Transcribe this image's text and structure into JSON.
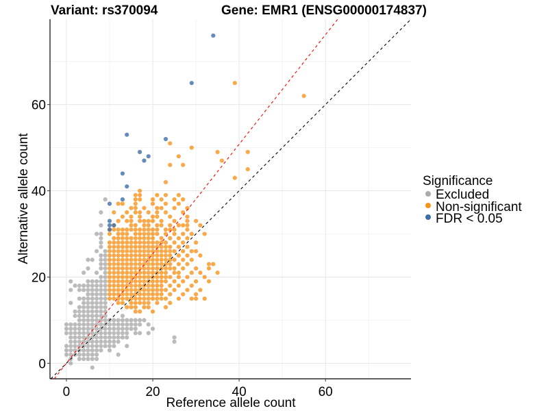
{
  "chart_data": {
    "type": "scatter",
    "title_left": "Variant: rs370094",
    "title_right": "Gene: EMR1 (ENSG00000174837)",
    "xlabel": "Reference allele count",
    "ylabel": "Alternative allele count",
    "xlim": [
      -3.8,
      79.8
    ],
    "ylim": [
      -3.6,
      79.8
    ],
    "x_ticks": [
      0,
      20,
      40,
      60
    ],
    "y_ticks": [
      0,
      20,
      40,
      60
    ],
    "x_tick_labels": [
      "0",
      "20",
      "40",
      "60"
    ],
    "y_tick_labels": [
      "0",
      "20",
      "40",
      "60"
    ],
    "grid": true,
    "minor_grid_step": 10,
    "reference_lines": [
      {
        "name": "identity",
        "slope": 1.0,
        "intercept": 0,
        "color": "#000000",
        "style": "dashed"
      },
      {
        "name": "expected-ratio",
        "slope": 1.27,
        "intercept": 0,
        "color": "#ff0000",
        "style": "dashed"
      }
    ],
    "legend": {
      "title": "Significance",
      "position": "right",
      "entries": [
        {
          "label": "Excluded",
          "color": "#aaaaaa"
        },
        {
          "label": "Non-significant",
          "color": "#f7941d"
        },
        {
          "label": "FDR < 0.05",
          "color": "#3d6ea7"
        }
      ]
    },
    "series": [
      {
        "name": "Excluded",
        "color": "#aaaaaa",
        "rows": [
          {
            "y": 38,
            "x": [
              9
            ]
          },
          {
            "y": 35,
            "x": [
              8
            ]
          },
          {
            "y": 32,
            "x": [
              8
            ]
          },
          {
            "y": 30,
            "x": [
              7,
              8
            ]
          },
          {
            "y": 29,
            "x": [
              8
            ]
          },
          {
            "y": 28,
            "x": [
              8
            ]
          },
          {
            "y": 27,
            "x": [
              8
            ]
          },
          {
            "y": 26,
            "x": [
              7,
              9
            ]
          },
          {
            "y": 25,
            "x": [
              8,
              9
            ]
          },
          {
            "y": 24,
            "x": [
              5,
              6,
              8,
              9
            ]
          },
          {
            "y": 23,
            "x": [
              8,
              9
            ]
          },
          {
            "y": 22,
            "x": [
              5,
              8,
              9
            ]
          },
          {
            "y": 21,
            "x": [
              4,
              7,
              9
            ]
          },
          {
            "y": 20,
            "x": [
              8,
              9
            ]
          },
          {
            "y": 19,
            "x": [
              1,
              5,
              6,
              7,
              8,
              9
            ]
          },
          {
            "y": 18,
            "x": [
              2,
              3,
              4,
              5,
              6,
              7,
              8,
              9
            ]
          },
          {
            "y": 17,
            "x": [
              1,
              3,
              4,
              5,
              6,
              7,
              8,
              9
            ]
          },
          {
            "y": 16,
            "x": [
              5,
              6,
              7,
              8,
              9
            ]
          },
          {
            "y": 15,
            "x": [
              3,
              4,
              5,
              6,
              7,
              8,
              9
            ]
          },
          {
            "y": 14,
            "x": [
              1,
              4,
              5,
              6,
              7,
              8,
              9
            ]
          },
          {
            "y": 13,
            "x": [
              3,
              4,
              5,
              6,
              7,
              8,
              9
            ]
          },
          {
            "y": 12,
            "x": [
              2,
              3,
              4,
              5,
              6,
              7,
              8,
              9
            ]
          },
          {
            "y": 11,
            "x": [
              2,
              3,
              4,
              5,
              6,
              7,
              8,
              9,
              13
            ]
          },
          {
            "y": 10,
            "x": [
              3,
              4,
              5,
              6,
              7,
              8,
              9,
              10,
              11,
              12,
              13,
              14,
              15,
              16,
              17,
              18
            ]
          },
          {
            "y": 9,
            "x": [
              0,
              1,
              2,
              3,
              4,
              5,
              6,
              7,
              8,
              9,
              10,
              11,
              12,
              13,
              14,
              15,
              16,
              17,
              19
            ]
          },
          {
            "y": 8,
            "x": [
              0,
              1,
              2,
              3,
              4,
              5,
              6,
              7,
              8,
              9,
              10,
              11,
              12,
              13,
              14,
              15,
              16,
              20
            ]
          },
          {
            "y": 7,
            "x": [
              0,
              1,
              2,
              3,
              4,
              5,
              6,
              7,
              8,
              9,
              10,
              11,
              12,
              13,
              14,
              16,
              17,
              19
            ]
          },
          {
            "y": 6,
            "x": [
              1,
              2,
              3,
              4,
              5,
              6,
              7,
              8,
              9,
              10,
              11,
              12,
              13,
              14,
              25
            ]
          },
          {
            "y": 5,
            "x": [
              1,
              2,
              3,
              4,
              5,
              6,
              7,
              8,
              9,
              10,
              11,
              12,
              25
            ]
          },
          {
            "y": 4,
            "x": [
              0,
              1,
              2,
              3,
              4,
              5,
              6,
              7,
              8,
              9,
              10,
              11,
              14
            ]
          },
          {
            "y": 3,
            "x": [
              0,
              1,
              2,
              3,
              4,
              5,
              6,
              7,
              8,
              10
            ]
          },
          {
            "y": 2,
            "x": [
              0,
              1,
              2,
              3,
              4,
              5,
              6,
              7,
              12
            ]
          },
          {
            "y": 1,
            "x": [
              1,
              3,
              4,
              5,
              6,
              7
            ]
          },
          {
            "y": 0,
            "x": [
              1
            ]
          },
          {
            "y": -1,
            "x": [
              6
            ]
          }
        ]
      },
      {
        "name": "Non-significant",
        "color": "#f7941d",
        "rows": [
          {
            "y": 65,
            "x": [
              39
            ]
          },
          {
            "y": 62,
            "x": [
              55
            ]
          },
          {
            "y": 51,
            "x": [
              24
            ]
          },
          {
            "y": 50,
            "x": [
              29
            ]
          },
          {
            "y": 49,
            "x": [
              35,
              42
            ]
          },
          {
            "y": 48,
            "x": [
              26
            ]
          },
          {
            "y": 47,
            "x": [
              36
            ]
          },
          {
            "y": 46,
            "x": [
              24,
              27
            ]
          },
          {
            "y": 45,
            "x": [
              42
            ]
          },
          {
            "y": 43,
            "x": [
              39
            ]
          },
          {
            "y": 42,
            "x": [
              23
            ]
          },
          {
            "y": 40,
            "x": [
              17
            ]
          },
          {
            "y": 39,
            "x": [
              16,
              17,
              21,
              23,
              26
            ]
          },
          {
            "y": 38,
            "x": [
              16,
              17,
              20,
              22,
              25,
              27
            ]
          },
          {
            "y": 37,
            "x": [
              12,
              13,
              16,
              20,
              23,
              26
            ]
          },
          {
            "y": 36,
            "x": [
              15,
              16,
              18,
              21,
              22,
              25,
              28
            ]
          },
          {
            "y": 35,
            "x": [
              11,
              14,
              16,
              17,
              19,
              21,
              23,
              27
            ]
          },
          {
            "y": 34,
            "x": [
              13,
              15,
              17,
              20,
              21,
              24,
              28
            ]
          },
          {
            "y": 33,
            "x": [
              12,
              14,
              15,
              17,
              18,
              19,
              20,
              22,
              25,
              28,
              30
            ]
          },
          {
            "y": 32,
            "x": [
              11,
              15,
              16,
              18,
              19,
              21,
              22,
              24,
              26,
              27,
              28,
              31
            ]
          },
          {
            "y": 31,
            "x": [
              10,
              11,
              12,
              13,
              14,
              15,
              16,
              17,
              18,
              19,
              20,
              21,
              23,
              24,
              25,
              28
            ]
          },
          {
            "y": 30,
            "x": [
              10,
              12,
              13,
              14,
              16,
              17,
              18,
              19,
              20,
              21,
              23,
              25,
              27,
              29,
              32
            ]
          },
          {
            "y": 29,
            "x": [
              11,
              12,
              13,
              14,
              15,
              16,
              17,
              18,
              19,
              20,
              22,
              24,
              26,
              28
            ]
          },
          {
            "y": 28,
            "x": [
              10,
              11,
              12,
              13,
              14,
              15,
              16,
              17,
              18,
              19,
              20,
              21,
              22,
              23,
              25,
              27,
              30
            ]
          },
          {
            "y": 27,
            "x": [
              10,
              11,
              12,
              13,
              14,
              15,
              16,
              17,
              18,
              19,
              20,
              21,
              22,
              23,
              24,
              26,
              28
            ]
          },
          {
            "y": 26,
            "x": [
              10,
              11,
              12,
              13,
              14,
              15,
              16,
              17,
              18,
              19,
              20,
              21,
              22,
              23,
              24,
              25,
              27,
              29,
              30
            ]
          },
          {
            "y": 25,
            "x": [
              10,
              11,
              12,
              13,
              14,
              15,
              16,
              17,
              18,
              19,
              20,
              21,
              22,
              23,
              24,
              26,
              28,
              31
            ]
          },
          {
            "y": 24,
            "x": [
              10,
              11,
              12,
              13,
              14,
              15,
              16,
              17,
              18,
              19,
              20,
              21,
              22,
              23,
              24,
              25,
              27,
              29
            ]
          },
          {
            "y": 23,
            "x": [
              10,
              11,
              12,
              13,
              14,
              15,
              16,
              17,
              18,
              19,
              20,
              21,
              22,
              23,
              24,
              26,
              28,
              33,
              34
            ]
          },
          {
            "y": 22,
            "x": [
              10,
              11,
              12,
              13,
              14,
              15,
              16,
              17,
              18,
              19,
              20,
              21,
              22,
              23,
              24,
              25,
              27,
              30,
              33
            ]
          },
          {
            "y": 21,
            "x": [
              10,
              11,
              12,
              13,
              14,
              15,
              16,
              17,
              18,
              19,
              20,
              21,
              22,
              23,
              25,
              26,
              29,
              31,
              35
            ]
          },
          {
            "y": 20,
            "x": [
              10,
              11,
              12,
              13,
              14,
              15,
              16,
              17,
              18,
              19,
              20,
              21,
              22,
              23,
              24,
              26,
              28,
              32
            ]
          },
          {
            "y": 19,
            "x": [
              10,
              11,
              12,
              13,
              14,
              15,
              16,
              17,
              18,
              19,
              20,
              21,
              22,
              23,
              25,
              27,
              30,
              33
            ]
          },
          {
            "y": 18,
            "x": [
              10,
              11,
              12,
              13,
              14,
              15,
              16,
              17,
              18,
              19,
              20,
              21,
              22,
              24,
              26,
              29
            ]
          },
          {
            "y": 17,
            "x": [
              10,
              11,
              12,
              13,
              14,
              15,
              16,
              17,
              18,
              19,
              20,
              21,
              22,
              23,
              25,
              28,
              31
            ]
          },
          {
            "y": 16,
            "x": [
              10,
              11,
              12,
              13,
              14,
              15,
              16,
              17,
              18,
              19,
              20,
              21,
              22,
              24,
              27,
              30
            ]
          },
          {
            "y": 15,
            "x": [
              10,
              11,
              12,
              13,
              14,
              15,
              16,
              17,
              18,
              19,
              20,
              21,
              22,
              23,
              26,
              29,
              30,
              32
            ]
          },
          {
            "y": 14,
            "x": [
              12,
              13,
              15,
              16,
              17,
              18,
              19,
              21,
              24
            ]
          },
          {
            "y": 13,
            "x": [
              14,
              15,
              16,
              18,
              19,
              23
            ]
          },
          {
            "y": 12,
            "x": [
              16,
              17,
              20
            ]
          }
        ]
      },
      {
        "name": "FDR < 0.05",
        "color": "#3d6ea7",
        "rows": [
          {
            "y": 76,
            "x": [
              34
            ]
          },
          {
            "y": 65,
            "x": [
              29
            ]
          },
          {
            "y": 53,
            "x": [
              14
            ]
          },
          {
            "y": 52,
            "x": [
              23
            ]
          },
          {
            "y": 49,
            "x": [
              17
            ]
          },
          {
            "y": 48,
            "x": [
              19
            ]
          },
          {
            "y": 47,
            "x": [
              18
            ]
          },
          {
            "y": 44,
            "x": [
              13
            ]
          },
          {
            "y": 41,
            "x": [
              14
            ]
          },
          {
            "y": 38,
            "x": [
              13
            ]
          },
          {
            "y": 37,
            "x": [
              10
            ]
          },
          {
            "y": 33,
            "x": [
              10
            ]
          },
          {
            "y": 32,
            "x": [
              10,
              11
            ]
          },
          {
            "y": 31,
            "x": [
              10
            ]
          }
        ]
      }
    ]
  }
}
